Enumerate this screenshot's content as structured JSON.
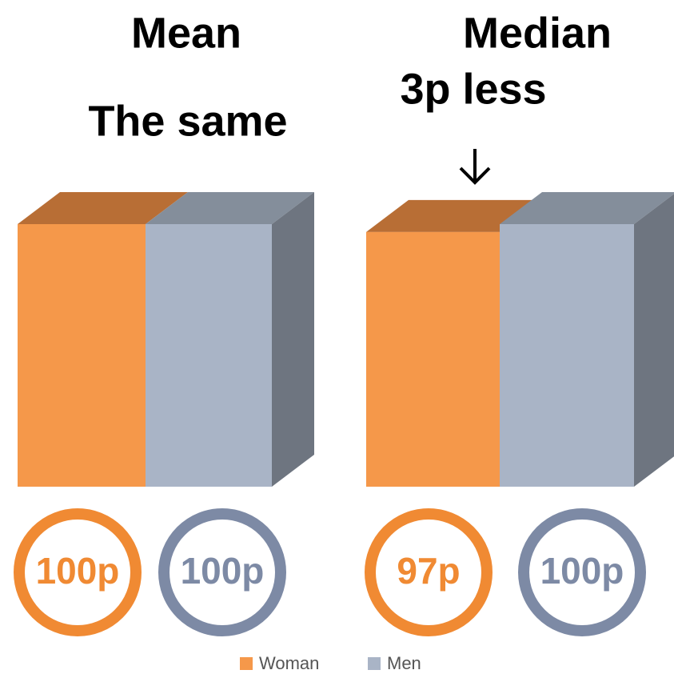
{
  "legend": [
    {
      "name": "Woman",
      "color": "#f5984a"
    },
    {
      "name": "Men",
      "color": "#a9b4c6"
    }
  ],
  "chart_data": [
    {
      "type": "bar",
      "title": "Mean",
      "annotation": "The same",
      "ylim": [
        0,
        100
      ],
      "series": [
        {
          "values": [
            100
          ],
          "value_labels": [
            "100p"
          ]
        },
        {
          "values": [
            100
          ],
          "value_labels": [
            "100p"
          ]
        }
      ]
    },
    {
      "type": "bar",
      "title": "Median",
      "annotation": "3p less",
      "ylim": [
        0,
        100
      ],
      "series": [
        {
          "values": [
            97
          ],
          "value_labels": [
            "97p"
          ]
        },
        {
          "values": [
            100
          ],
          "value_labels": [
            "100p"
          ]
        }
      ]
    }
  ]
}
